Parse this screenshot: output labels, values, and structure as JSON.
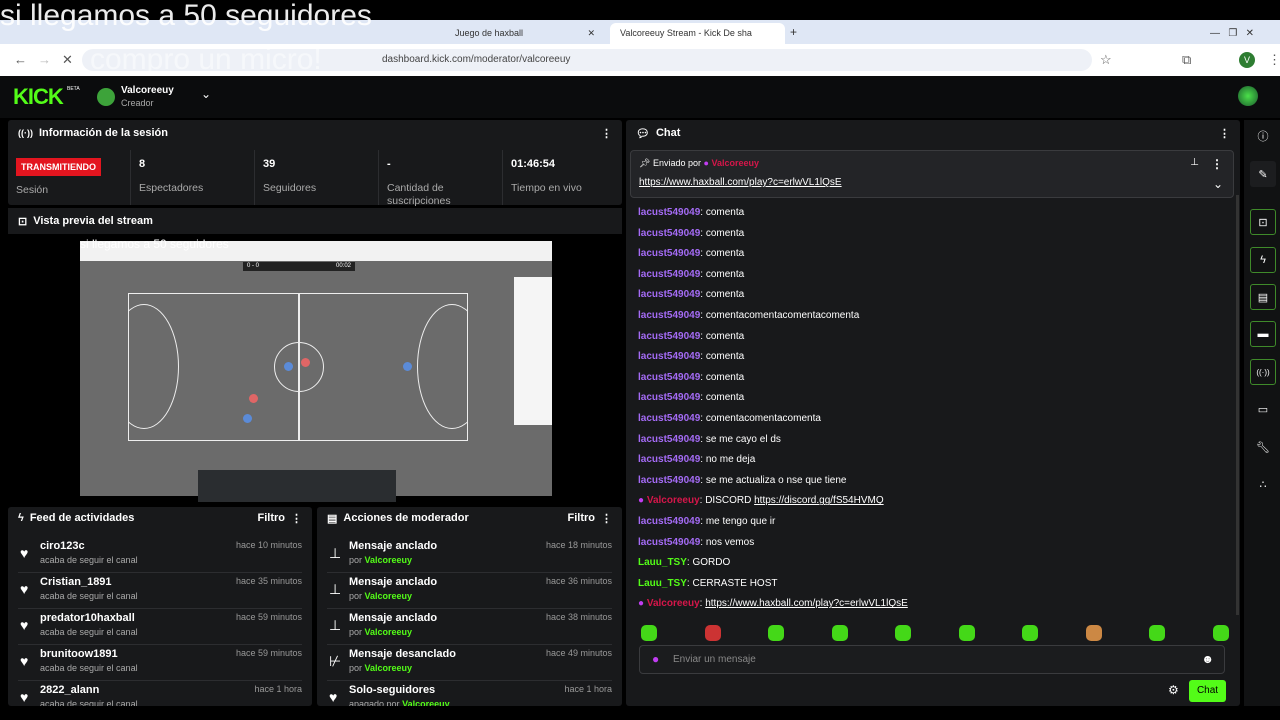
{
  "overlay": {
    "line1": "si llegamos a 50 seguidores",
    "line2": "compro un micro!"
  },
  "browser": {
    "tabs": [
      {
        "label": "Juego de haxball"
      },
      {
        "label": "Valcoreeuy Stream - Kick De sha"
      }
    ],
    "url": "dashboard.kick.com/moderator/valcoreeuy",
    "profile_initial": "V"
  },
  "header": {
    "logo": "KICK",
    "beta": "BETA",
    "channel": "Valcoreeuy",
    "role": "Creador"
  },
  "session": {
    "title": "Información de la sesión",
    "status": "TRANSMITIENDO",
    "stats": [
      {
        "value": "",
        "label": "Sesión"
      },
      {
        "value": "8",
        "label": "Espectadores"
      },
      {
        "value": "39",
        "label": "Seguidores"
      },
      {
        "value": "-",
        "label": "Cantidad de suscripciones"
      },
      {
        "value": "01:46:54",
        "label": "Tiempo en vivo"
      }
    ]
  },
  "preview": {
    "title": "Vista previa del stream",
    "overlay": "si llegamos a 50 seguidores",
    "score": "0 - 0",
    "clock": "00:02"
  },
  "feed": {
    "title": "Feed de actividades",
    "filter": "Filtro",
    "items": [
      {
        "user": "ciro123c",
        "desc": "acaba de seguir el canal",
        "time": "hace 10 minutos"
      },
      {
        "user": "Cristian_1891",
        "desc": "acaba de seguir el canal",
        "time": "hace 35 minutos"
      },
      {
        "user": "predator10haxball",
        "desc": "acaba de seguir el canal",
        "time": "hace 59 minutos"
      },
      {
        "user": "brunitoow1891",
        "desc": "acaba de seguir el canal",
        "time": "hace 59 minutos"
      },
      {
        "user": "2822_alann",
        "desc": "acaba de seguir el canal",
        "time": "hace 1 hora"
      }
    ]
  },
  "mod": {
    "title": "Acciones de moderador",
    "filter": "Filtro",
    "items": [
      {
        "action": "Mensaje anclado",
        "by": "por",
        "user": "Valcoreeuy",
        "time": "hace 18 minutos",
        "icon": "pin"
      },
      {
        "action": "Mensaje anclado",
        "by": "por",
        "user": "Valcoreeuy",
        "time": "hace 36 minutos",
        "icon": "pin"
      },
      {
        "action": "Mensaje anclado",
        "by": "por",
        "user": "Valcoreeuy",
        "time": "hace 38 minutos",
        "icon": "pin"
      },
      {
        "action": "Mensaje desanclado",
        "by": "por",
        "user": "Valcoreeuy",
        "time": "hace 49 minutos",
        "icon": "unpin"
      },
      {
        "action": "Solo-seguidores",
        "by": "apagado por",
        "user": "Valcoreeuy",
        "time": "hace 1 hora",
        "icon": "heart"
      }
    ]
  },
  "chat": {
    "title": "Chat",
    "pinned": {
      "label": "Enviado por",
      "user": "Valcoreeuy",
      "link": "https://www.haxball.com/play?c=erlwVL1lQsE"
    },
    "messages": [
      {
        "user": "lacust549049",
        "text": "comenta",
        "type": "purple"
      },
      {
        "user": "lacust549049",
        "text": "comenta",
        "type": "purple"
      },
      {
        "user": "lacust549049",
        "text": "comenta",
        "type": "purple"
      },
      {
        "user": "lacust549049",
        "text": "comenta",
        "type": "purple"
      },
      {
        "user": "lacust549049",
        "text": "comenta",
        "type": "purple"
      },
      {
        "user": "lacust549049",
        "text": "comentacomentacomentacomenta",
        "type": "purple"
      },
      {
        "user": "lacust549049",
        "text": "comenta",
        "type": "purple"
      },
      {
        "user": "lacust549049",
        "text": "comenta",
        "type": "purple"
      },
      {
        "user": "lacust549049",
        "text": "comenta",
        "type": "purple"
      },
      {
        "user": "lacust549049",
        "text": "comenta",
        "type": "purple"
      },
      {
        "user": "lacust549049",
        "text": "comentacomentacomenta",
        "type": "purple"
      },
      {
        "user": "lacust549049",
        "text": "se me cayo el ds",
        "type": "purple"
      },
      {
        "user": "lacust549049",
        "text": "no me deja",
        "type": "purple"
      },
      {
        "user": "lacust549049",
        "text": "se me actualiza o nse que tiene",
        "type": "purple"
      },
      {
        "user": "Valcoreeuy",
        "text": "DISCORD",
        "link": "https://discord.gg/fS54HVMQ",
        "type": "host"
      },
      {
        "user": "lacust549049",
        "text": "me tengo que ir",
        "type": "purple"
      },
      {
        "user": "lacust549049",
        "text": "nos vemos",
        "type": "purple"
      },
      {
        "user": "Lauu_TSY",
        "text": "GORDO",
        "type": "green"
      },
      {
        "user": "Lauu_TSY",
        "text": "CERRASTE HOST",
        "type": "green"
      },
      {
        "user": "Valcoreeuy",
        "text": "",
        "link": "https://www.haxball.com/play?c=erlwVL1lQsE",
        "type": "host"
      }
    ],
    "placeholder": "Enviar un mensaje",
    "send": "Chat"
  },
  "colors": {
    "accent": "#53fc18",
    "live": "#e3151f",
    "host": "#d6164a",
    "user": "#a46bf5"
  }
}
